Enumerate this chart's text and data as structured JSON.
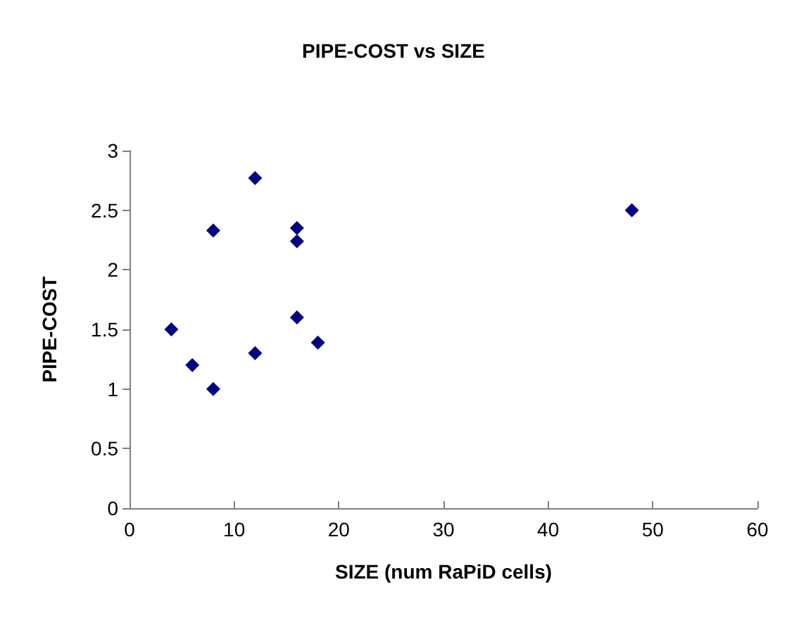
{
  "chart_data": {
    "type": "scatter",
    "title": "PIPE-COST vs SIZE",
    "xlabel": "SIZE (num RaPiD cells)",
    "ylabel": "PIPE-COST",
    "x": [
      4,
      6,
      8,
      8,
      12,
      12,
      16,
      16,
      16,
      18,
      48
    ],
    "series": [
      {
        "color": "#000080",
        "values": [
          1.5,
          1.2,
          1.0,
          2.33,
          1.3,
          2.77,
          2.35,
          2.24,
          1.6,
          1.39,
          2.5
        ]
      }
    ],
    "xlim": [
      0,
      60
    ],
    "xticks": [
      0,
      10,
      20,
      30,
      40,
      50,
      60
    ],
    "ylim": [
      0,
      3
    ],
    "yticks": [
      0,
      0.5,
      1,
      1.5,
      2,
      2.5,
      3
    ],
    "grid": false,
    "marker": "diamond"
  }
}
